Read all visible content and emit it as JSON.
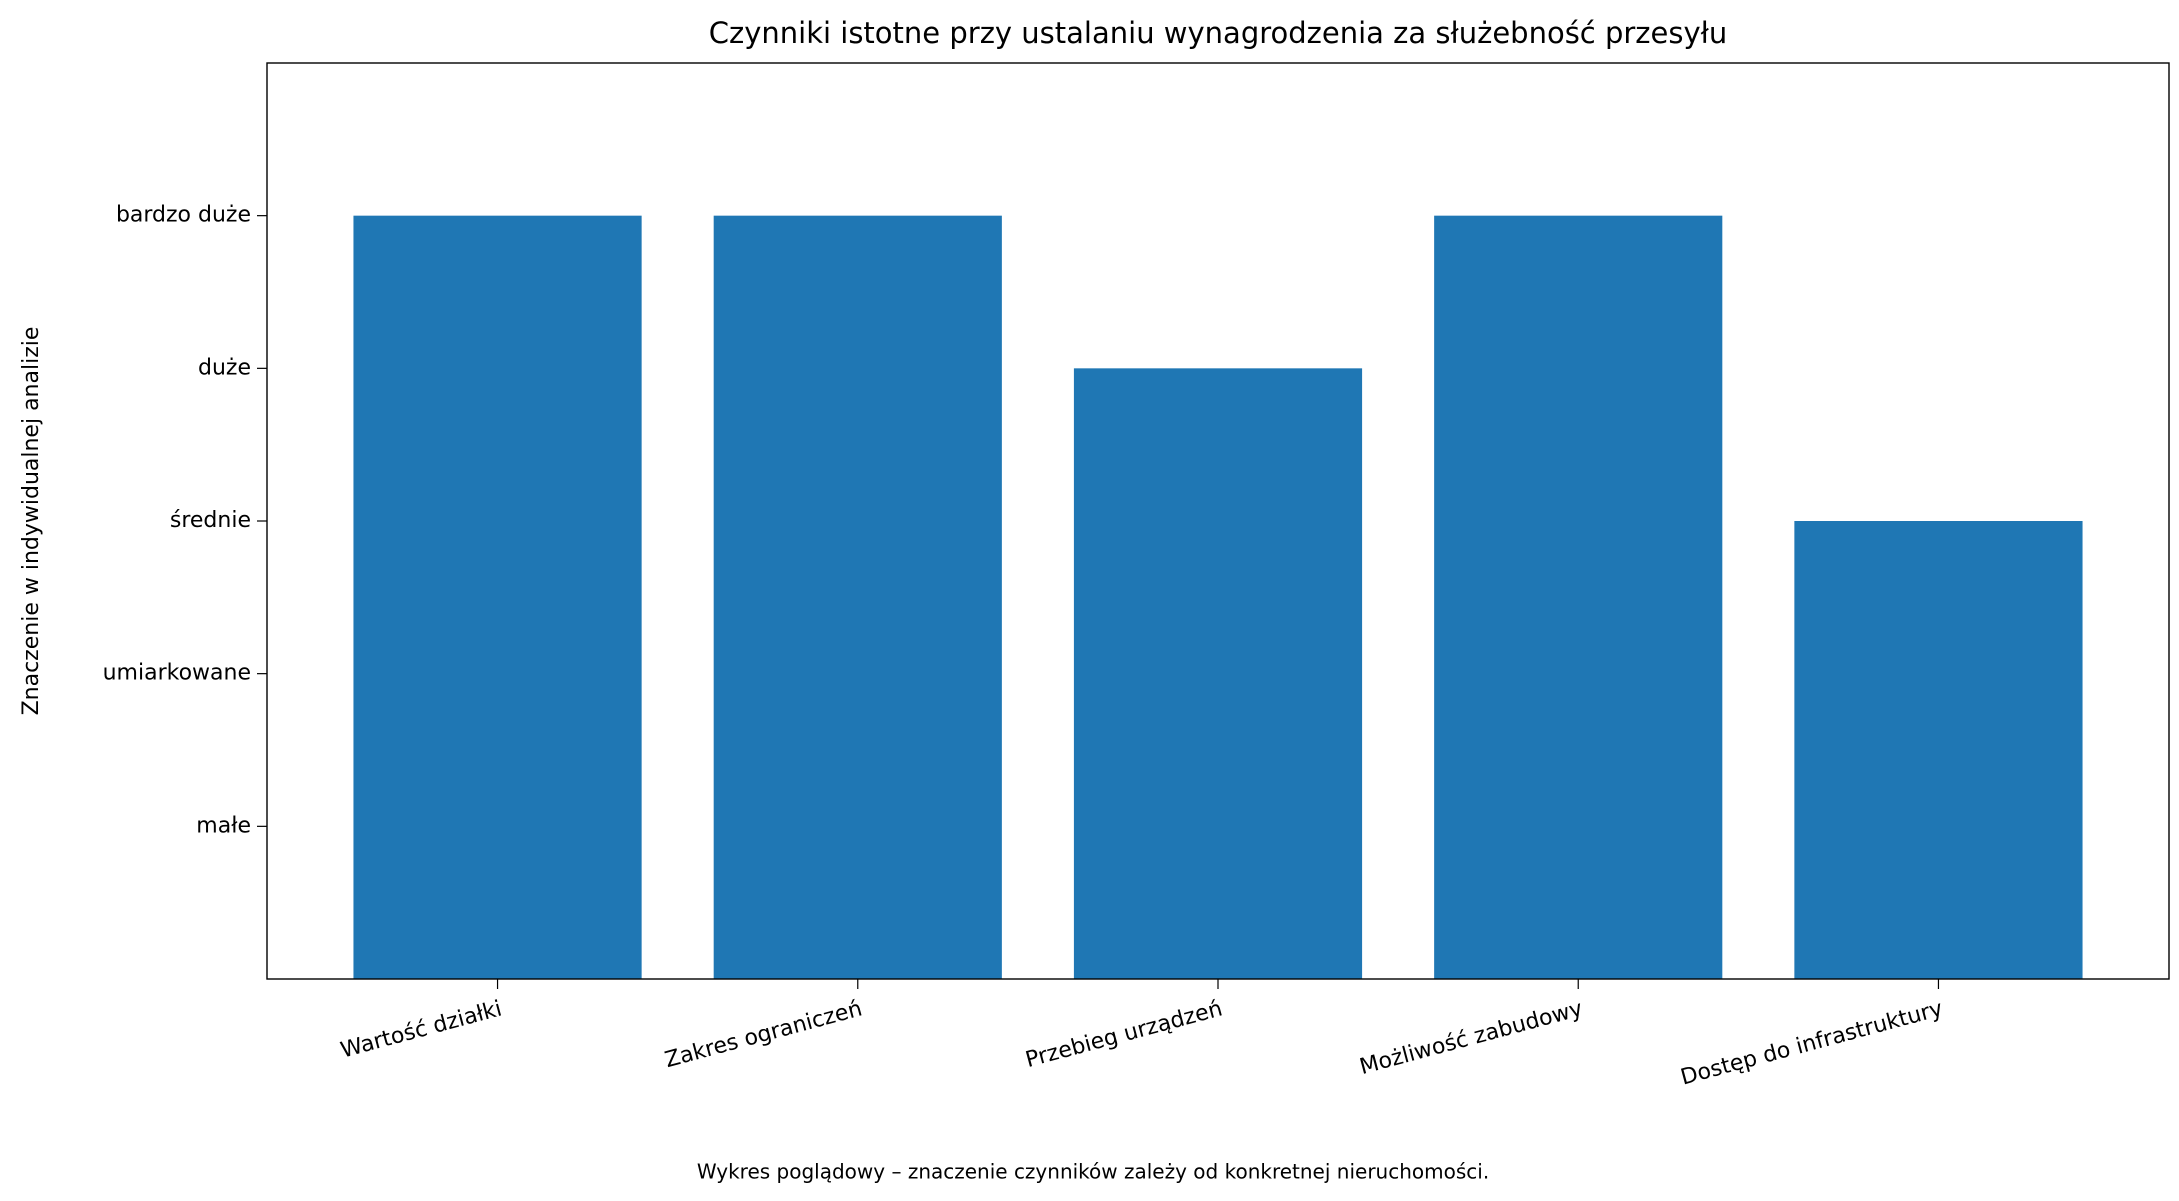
{
  "chart_data": {
    "type": "bar",
    "title": "Czynniki istotne przy ustalaniu wynagrodzenia za służebność przesyłu",
    "ylabel": "Znaczenie w indywidualnej analizie",
    "caption": "Wykres poglądowy – znaczenie czynników zależy od konkretnej nieruchomości.",
    "categories": [
      "Wartość działki",
      "Zakres ograniczeń",
      "Przebieg urządzeń",
      "Możliwość zabudowy",
      "Dostęp do infrastruktury"
    ],
    "values": [
      5,
      5,
      4,
      5,
      3
    ],
    "color": "#1f77b4",
    "ylim": [
      0,
      6
    ],
    "yticks": [
      {
        "value": 1,
        "label": "małe"
      },
      {
        "value": 2,
        "label": "umiarkowane"
      },
      {
        "value": 3,
        "label": "średnie"
      },
      {
        "value": 4,
        "label": "duże"
      },
      {
        "value": 5,
        "label": "bardzo duże"
      }
    ],
    "grid": false
  }
}
